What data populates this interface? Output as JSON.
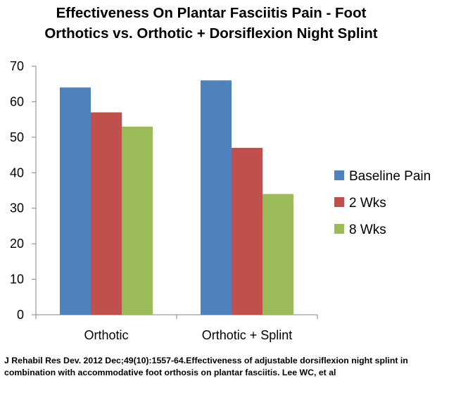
{
  "title_lines": [
    "Effectiveness On Plantar Fasciitis Pain  - Foot",
    "Orthotics vs. Orthotic + Dorsiflexion Night Splint"
  ],
  "citation": "J Rehabil Res Dev. 2012 Dec;49(10):1557-64.Effectiveness of adjustable dorsiflexion night splint in combination with accommodative foot orthosis on plantar fasciitis. Lee WC, et al",
  "chart_data": {
    "type": "bar",
    "title": "Effectiveness On Plantar Fasciitis Pain  - Foot Orthotics vs. Orthotic + Dorsiflexion Night Splint",
    "xlabel": "",
    "ylabel": "",
    "categories": [
      "Orthotic",
      "Orthotic + Splint"
    ],
    "series": [
      {
        "name": "Baseline Pain",
        "values": [
          64,
          66
        ],
        "color": "#4F81BD"
      },
      {
        "name": "2 Wks",
        "values": [
          57,
          47
        ],
        "color": "#C0504D"
      },
      {
        "name": "8 Wks",
        "values": [
          53,
          34
        ],
        "color": "#9BBB59"
      }
    ],
    "ylim": [
      0,
      70
    ],
    "yticks": [
      0,
      10,
      20,
      30,
      40,
      50,
      60,
      70
    ],
    "grid": false,
    "legend": "right"
  }
}
